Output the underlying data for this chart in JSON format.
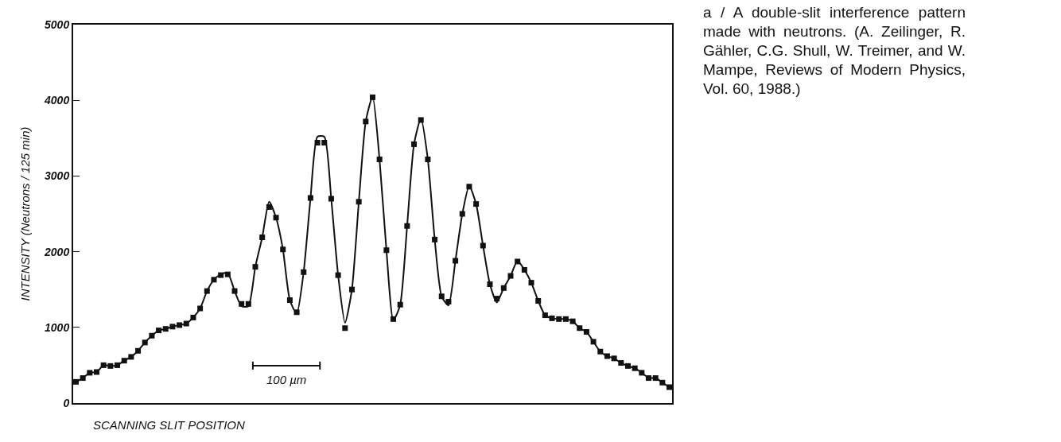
{
  "chart_data": {
    "type": "scatter",
    "categories": [
      null,
      null,
      null,
      null,
      null,
      null,
      null,
      null,
      null,
      null,
      null,
      null,
      null,
      null,
      null,
      null,
      null,
      null,
      null,
      null,
      null,
      null,
      null,
      null,
      null,
      null,
      null,
      null,
      null,
      null,
      null,
      null,
      null,
      null,
      null,
      null,
      null,
      null,
      null,
      null,
      null,
      null,
      null,
      null,
      null,
      null,
      null,
      null,
      null,
      null,
      null,
      null,
      null,
      null,
      null,
      null,
      null,
      null,
      null,
      null,
      null,
      null,
      null,
      null,
      null,
      null,
      null,
      null,
      null,
      null,
      null,
      null,
      null,
      null,
      null,
      null,
      null,
      null,
      null,
      null,
      null,
      null,
      null,
      null,
      null,
      null,
      null
    ],
    "xlabel": "SCANNING SLIT POSITION",
    "ylabel": "INTENSITY (Neutrons / 125 min)",
    "annotations": [
      "100 µm",
      "a / A double-slit interference pattern made with neutrons.  (A. Zeilinger, R. Gähler, C.G. Shull, W. Treimer, and W. Mampe, Reviews of Modern Physics, Vol. 60, 1988.)"
    ],
    "ylim": [
      0,
      5000
    ],
    "yticks": [
      0,
      1000,
      2000,
      3000,
      4000,
      5000
    ],
    "tick_labels": "y",
    "grid": false,
    "marker": "square",
    "series": [
      {
        "type": "line",
        "color": "#111111",
        "line_style": "solid",
        "marker": "none",
        "values": [
          280,
          330,
          400,
          410,
          500,
          490,
          500,
          560,
          610,
          690,
          800,
          890,
          960,
          980,
          1010,
          1030,
          1050,
          1130,
          1250,
          1480,
          1630,
          1700,
          1720,
          1480,
          1280,
          1280,
          1800,
          2190,
          2660,
          2450,
          2030,
          1360,
          1180,
          1730,
          2710,
          3520,
          3520,
          2700,
          1690,
          1060,
          1500,
          2660,
          3720,
          4050,
          3220,
          2020,
          1090,
          1300,
          2340,
          3420,
          3760,
          3220,
          2160,
          1410,
          1290,
          1880,
          2500,
          2870,
          2630,
          2080,
          1570,
          1330,
          1520,
          1680,
          1880,
          1760,
          1590,
          1350,
          1160,
          1120,
          1110,
          1110,
          1080,
          990,
          940,
          810,
          680,
          620,
          590,
          530,
          490,
          460,
          400,
          330,
          330,
          270,
          210
        ]
      },
      {
        "color": "#111111",
        "values": [
          280,
          330,
          400,
          410,
          500,
          490,
          500,
          560,
          610,
          690,
          800,
          890,
          960,
          980,
          1010,
          1030,
          1050,
          1130,
          1250,
          1480,
          1630,
          1690,
          1700,
          1480,
          1310,
          1310,
          1800,
          2190,
          2590,
          2450,
          2030,
          1360,
          1200,
          1730,
          2710,
          3440,
          3440,
          2700,
          1690,
          990,
          1500,
          2660,
          3720,
          4040,
          3220,
          2020,
          1110,
          1300,
          2340,
          3420,
          3740,
          3220,
          2160,
          1410,
          1340,
          1880,
          2500,
          2860,
          2630,
          2080,
          1570,
          1380,
          1520,
          1680,
          1870,
          1760,
          1590,
          1350,
          1160,
          1120,
          1110,
          1110,
          1080,
          990,
          940,
          810,
          680,
          620,
          590,
          530,
          490,
          460,
          400,
          330,
          330,
          270,
          210
        ]
      }
    ]
  }
}
